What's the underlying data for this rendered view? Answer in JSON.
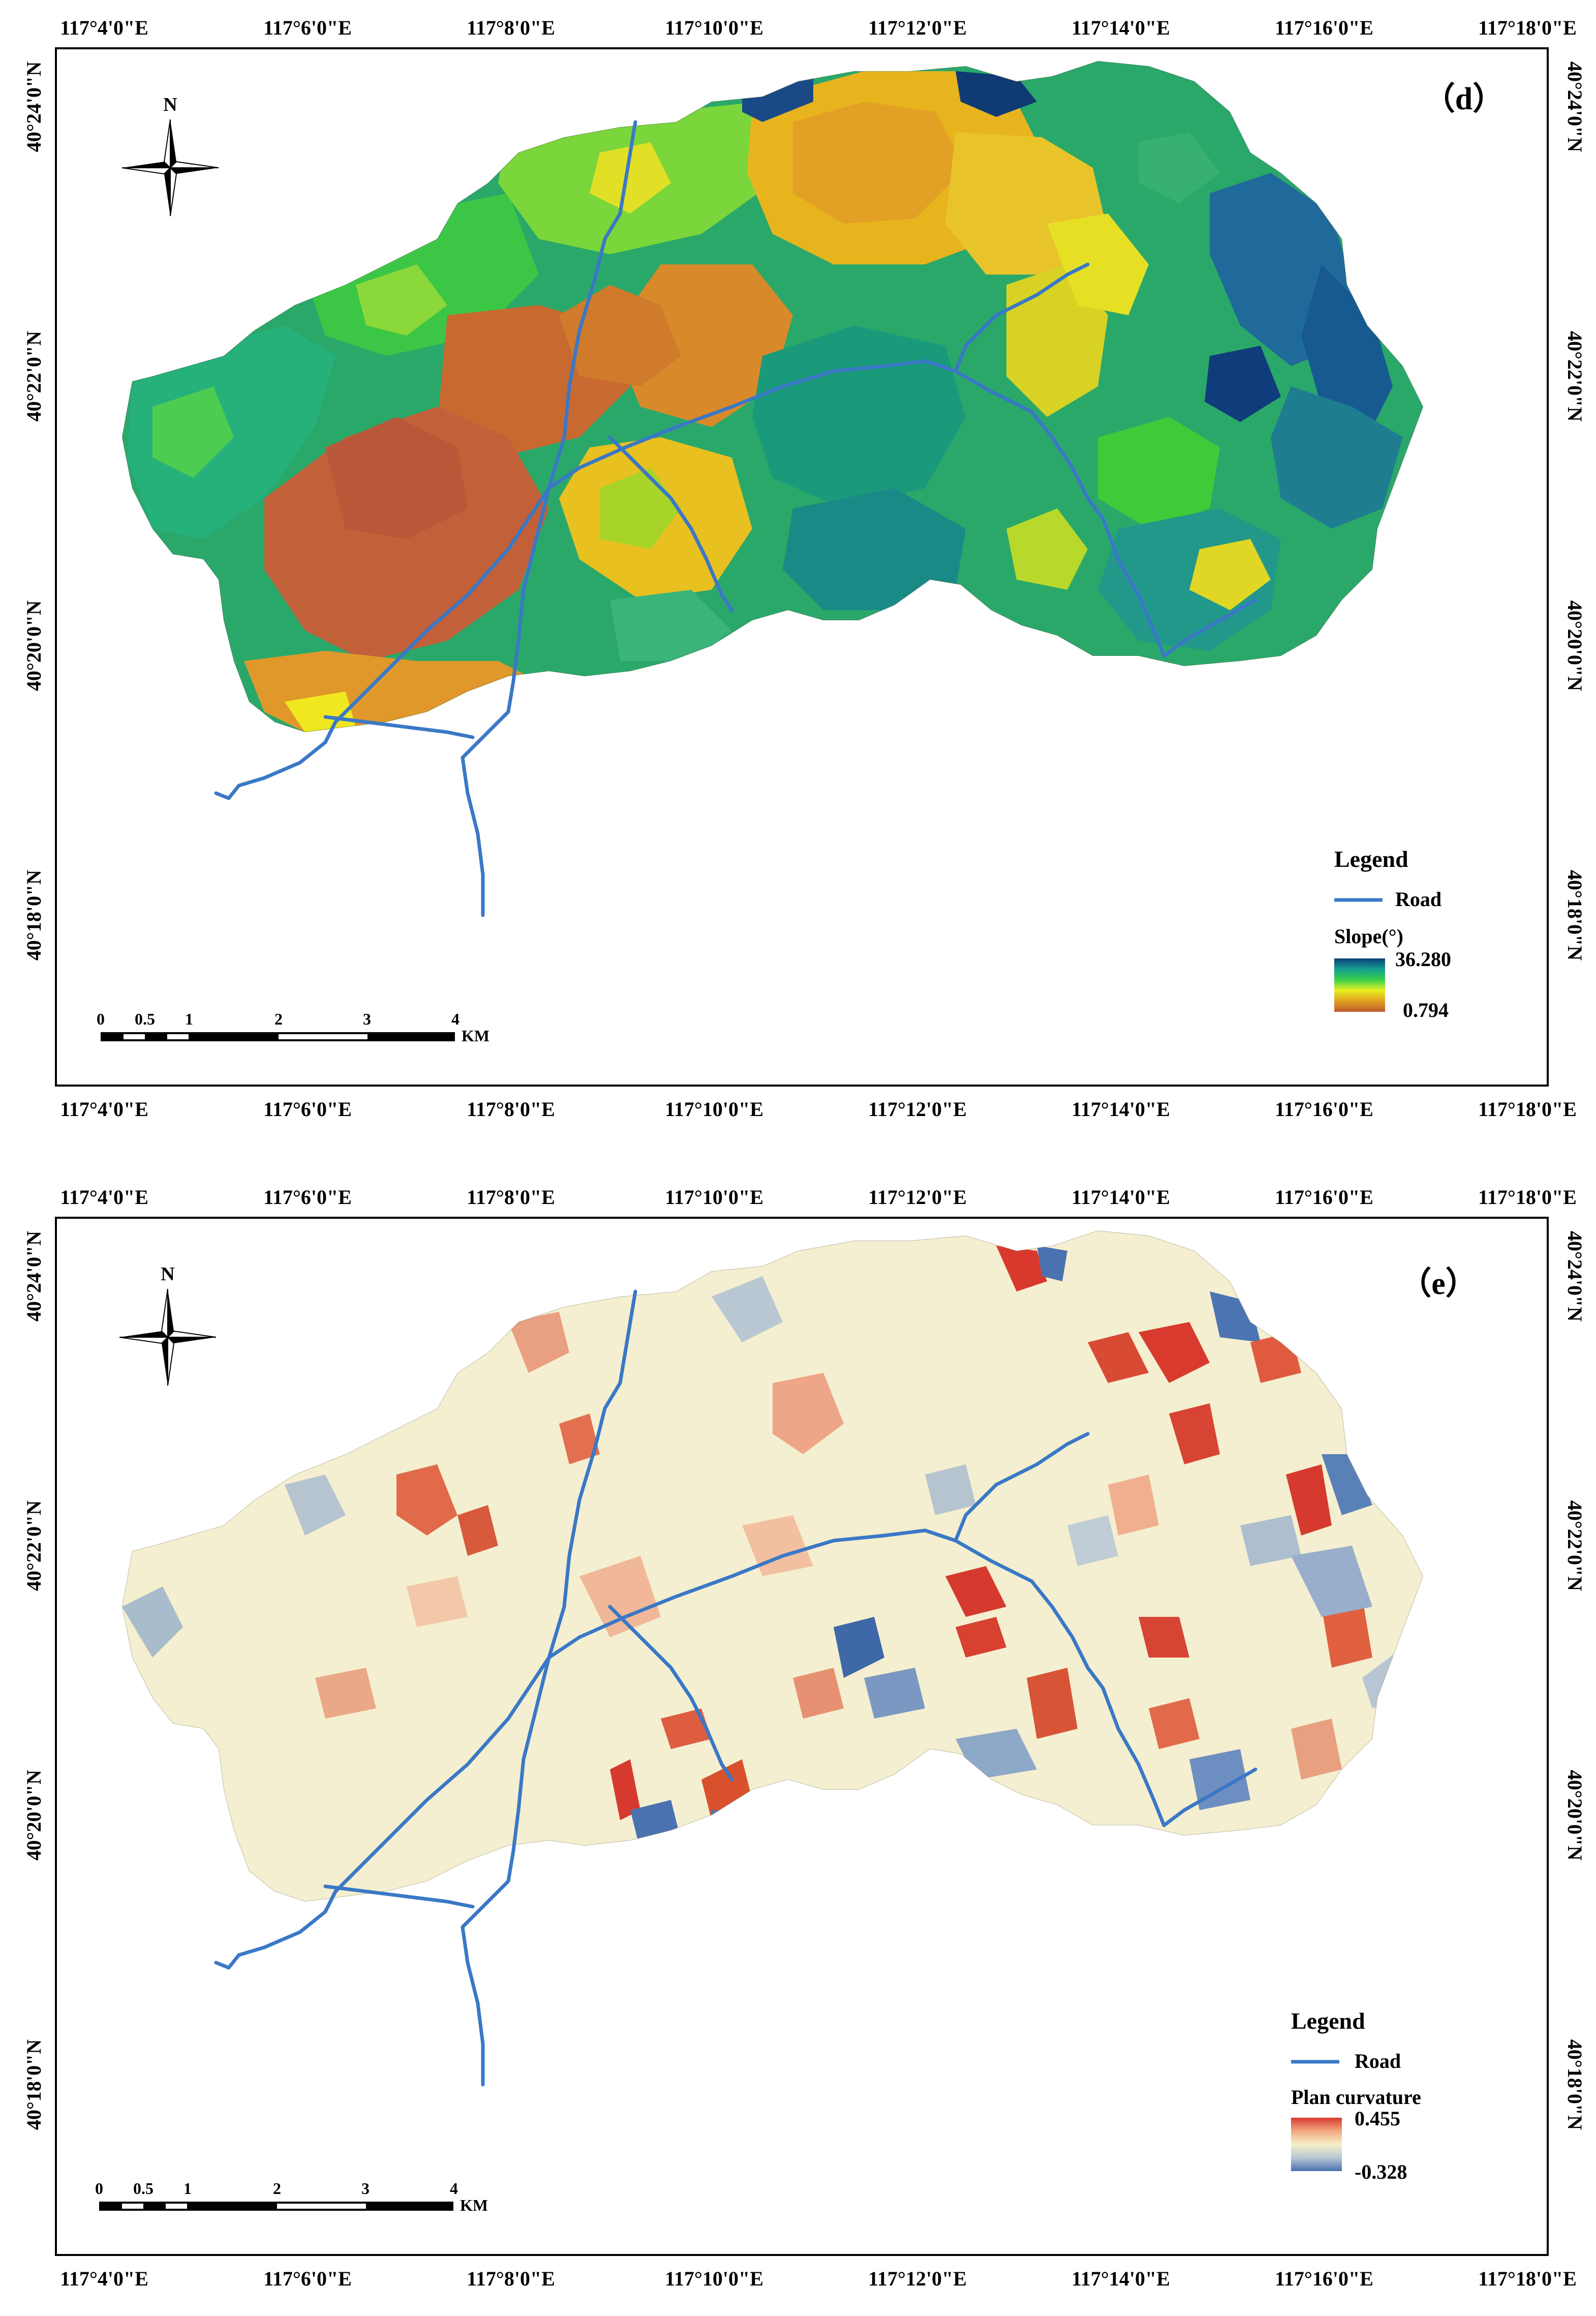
{
  "panels": [
    {
      "id": "d",
      "label": "（d）",
      "north_label": "N",
      "lon_ticks": [
        "117°4'0\"E",
        "117°6'0\"E",
        "117°8'0\"E",
        "117°10'0\"E",
        "117°12'0\"E",
        "117°14'0\"E",
        "117°16'0\"E",
        "117°18'0\"E"
      ],
      "lat_ticks": [
        "40°24'0\"N",
        "40°22'0\"N",
        "40°20'0\"N",
        "40°18'0\"N"
      ],
      "legend": {
        "title": "Legend",
        "road_label": "Road",
        "variable": "Slope(°)",
        "max_label": "36.280",
        "min_label": "0.794",
        "max_value": 36.28,
        "min_value": 0.794,
        "ramp_colors_top_to_bottom": [
          "#0b3f7a",
          "#14a08f",
          "#3ad04a",
          "#e8f020",
          "#e0a020",
          "#c05a30"
        ]
      },
      "scale_bar": {
        "labels": [
          "0",
          "0.5",
          "1",
          "2",
          "3",
          "4"
        ],
        "unit": "KM"
      }
    },
    {
      "id": "e",
      "label": "（e）",
      "north_label": "N",
      "lon_ticks": [
        "117°4'0\"E",
        "117°6'0\"E",
        "117°8'0\"E",
        "117°10'0\"E",
        "117°12'0\"E",
        "117°14'0\"E",
        "117°16'0\"E",
        "117°18'0\"E"
      ],
      "lat_ticks": [
        "40°24'0\"N",
        "40°22'0\"N",
        "40°20'0\"N",
        "40°18'0\"N"
      ],
      "legend": {
        "title": "Legend",
        "road_label": "Road",
        "variable": "Plan curvature",
        "max_label": "0.455",
        "min_label": "-0.328",
        "max_value": 0.455,
        "min_value": -0.328,
        "ramp_colors_top_to_bottom": [
          "#d83a2e",
          "#f2a882",
          "#f6f0c8",
          "#b8c6d4",
          "#4a72b0"
        ]
      },
      "scale_bar": {
        "labels": [
          "0",
          "0.5",
          "1",
          "2",
          "3",
          "4"
        ],
        "unit": "KM"
      }
    }
  ]
}
